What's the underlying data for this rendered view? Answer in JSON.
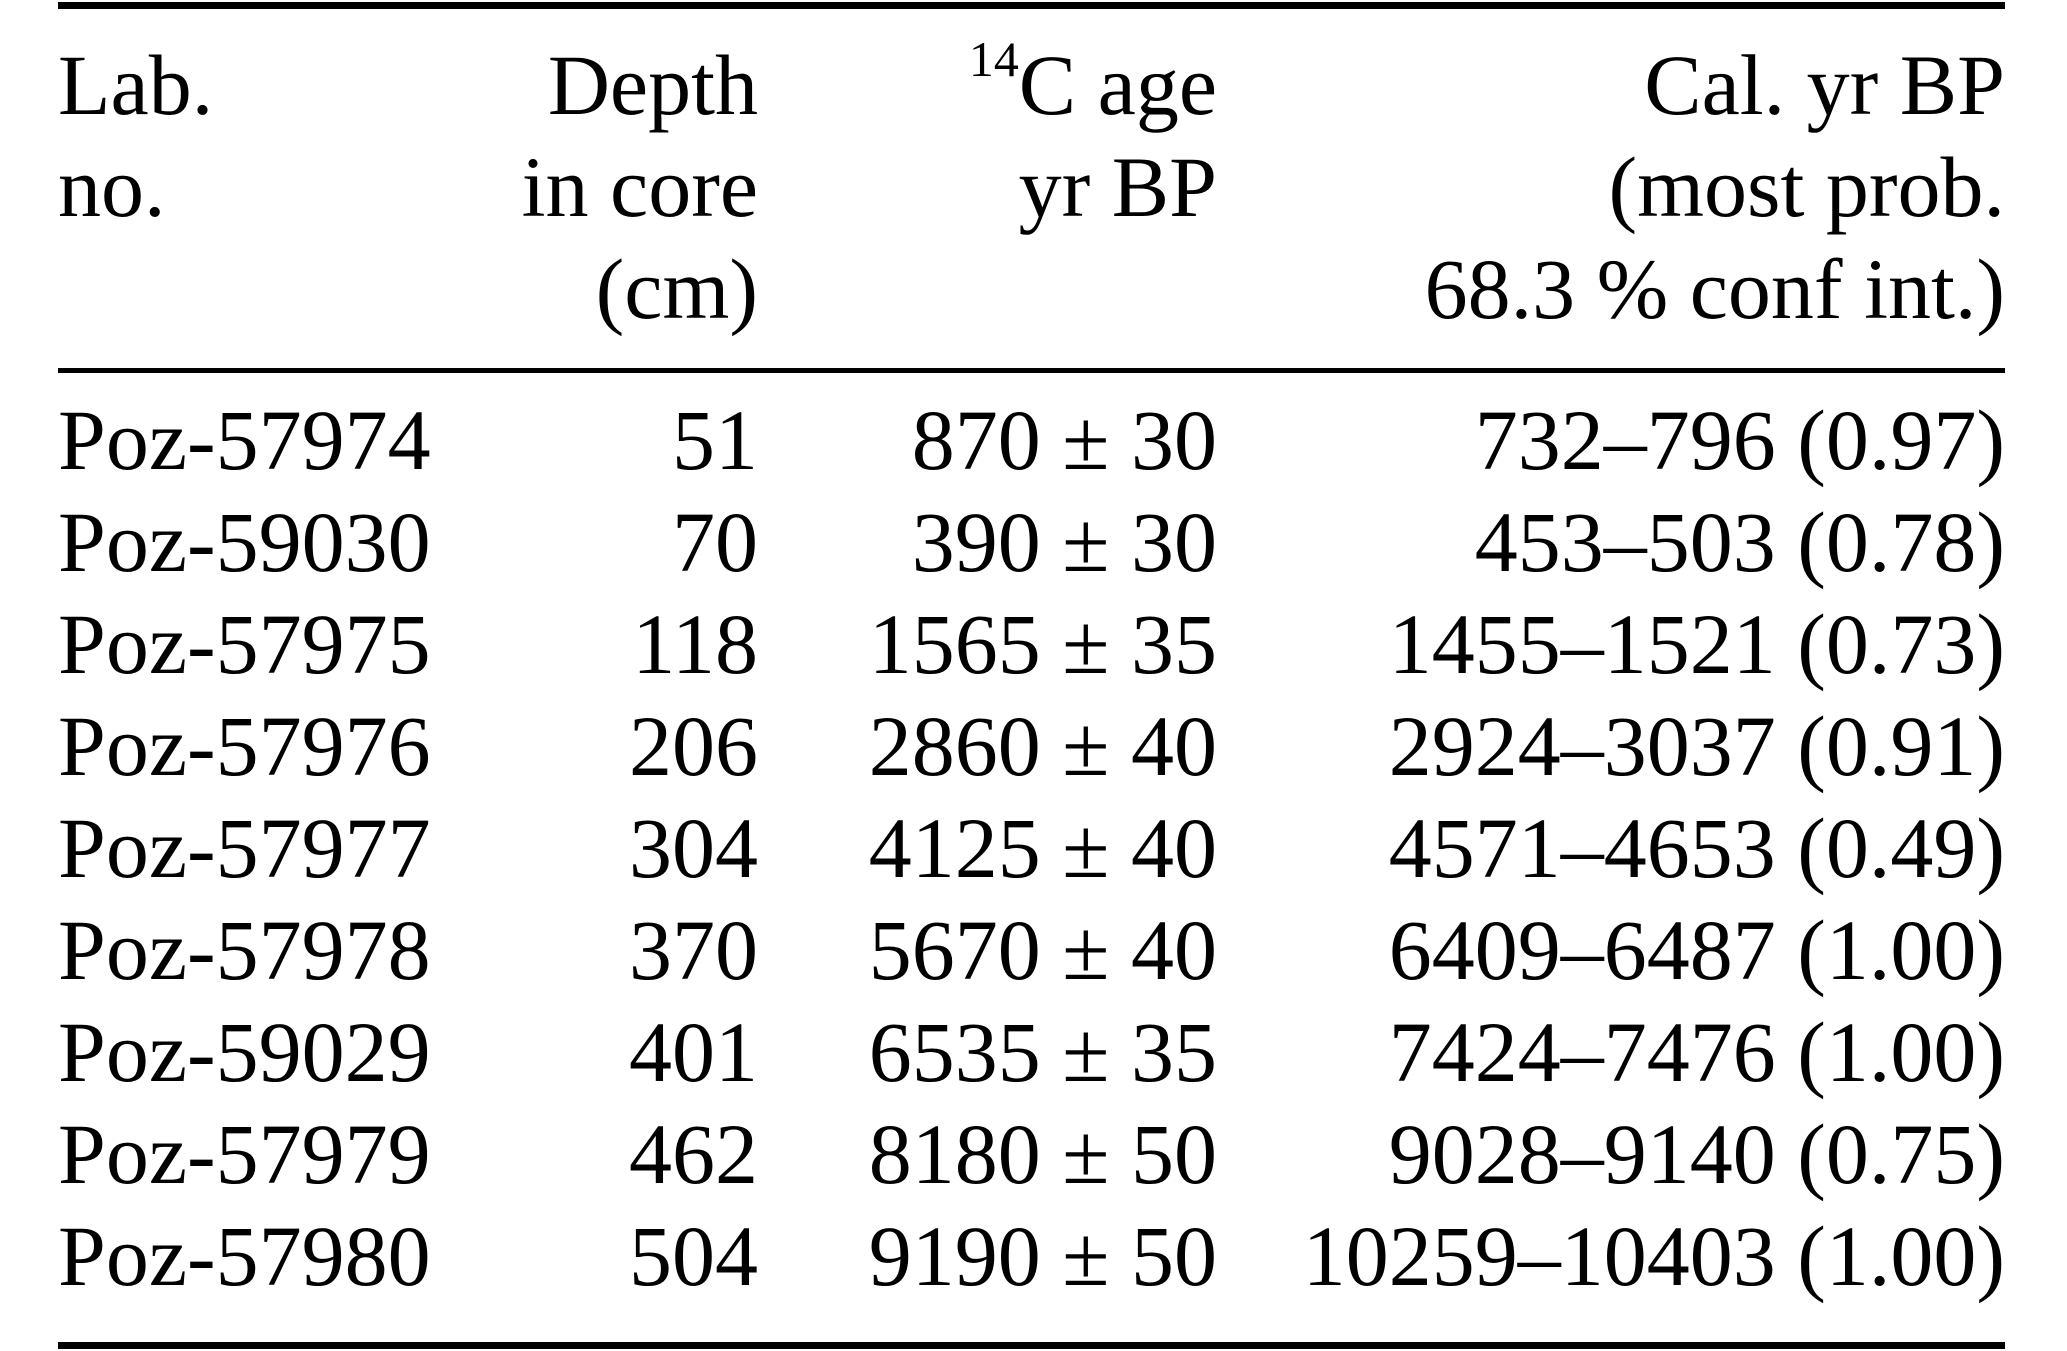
{
  "page": {
    "background_color": "#ffffff",
    "text_color": "#000000"
  },
  "header": {
    "lab": {
      "line1": "Lab.",
      "line2": "no."
    },
    "depth": {
      "line1": "Depth",
      "line2": "in core",
      "line3": "(cm)"
    },
    "c14": {
      "sup": "14",
      "line1_rest": "C age",
      "line2": "yr BP"
    },
    "cal": {
      "line1": "Cal. yr BP",
      "line2": "(most prob.",
      "line3": "68.3 % conf int.)"
    }
  },
  "rows": [
    {
      "lab": "Poz-57974",
      "depth": "51",
      "c14_age": "870 ± 30",
      "cal_range": "732–796 (0.97)"
    },
    {
      "lab": "Poz-59030",
      "depth": "70",
      "c14_age": "390 ± 30",
      "cal_range": "453–503 (0.78)"
    },
    {
      "lab": "Poz-57975",
      "depth": "118",
      "c14_age": "1565 ± 35",
      "cal_range": "1455–1521 (0.73)"
    },
    {
      "lab": "Poz-57976",
      "depth": "206",
      "c14_age": "2860 ± 40",
      "cal_range": "2924–3037 (0.91)"
    },
    {
      "lab": "Poz-57977",
      "depth": "304",
      "c14_age": "4125 ± 40",
      "cal_range": "4571–4653 (0.49)"
    },
    {
      "lab": "Poz-57978",
      "depth": "370",
      "c14_age": "5670 ± 40",
      "cal_range": "6409–6487 (1.00)"
    },
    {
      "lab": "Poz-59029",
      "depth": "401",
      "c14_age": "6535 ± 35",
      "cal_range": "7424–7476 (1.00)"
    },
    {
      "lab": "Poz-57979",
      "depth": "462",
      "c14_age": "8180 ± 50",
      "cal_range": "9028–9140 (0.75)"
    },
    {
      "lab": "Poz-57980",
      "depth": "504",
      "c14_age": "9190 ± 50",
      "cal_range": "10259–10403 (1.00)"
    }
  ],
  "chart_data": {
    "type": "table",
    "columns": [
      "Lab. no.",
      "Depth in core (cm)",
      "14C age yr BP",
      "Cal. yr BP (most prob. 68.3 % conf int.)"
    ],
    "rows": [
      [
        "Poz-57974",
        51,
        "870 ± 30",
        "732–796 (0.97)"
      ],
      [
        "Poz-59030",
        70,
        "390 ± 30",
        "453–503 (0.78)"
      ],
      [
        "Poz-57975",
        118,
        "1565 ± 35",
        "1455–1521 (0.73)"
      ],
      [
        "Poz-57976",
        206,
        "2860 ± 40",
        "2924–3037 (0.91)"
      ],
      [
        "Poz-57977",
        304,
        "4125 ± 40",
        "4571–4653 (0.49)"
      ],
      [
        "Poz-57978",
        370,
        "5670 ± 40",
        "6409–6487 (1.00)"
      ],
      [
        "Poz-59029",
        401,
        "6535 ± 35",
        "7424–7476 (1.00)"
      ],
      [
        "Poz-57979",
        462,
        "8180 ± 50",
        "9028–9140 (0.75)"
      ],
      [
        "Poz-57980",
        504,
        "9190 ± 50",
        "10259–10403 (1.00)"
      ]
    ]
  }
}
